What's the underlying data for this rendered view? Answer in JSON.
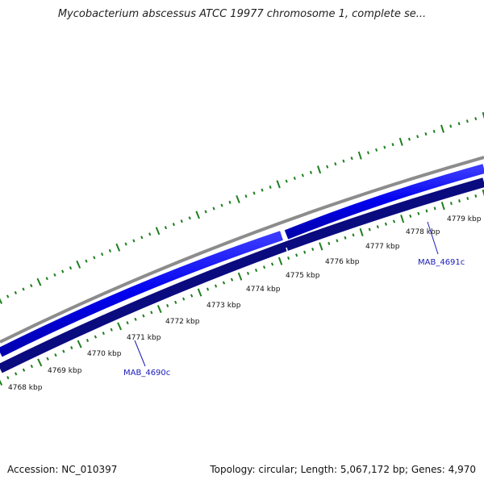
{
  "title": "Mycobacterium abscessus ATCC 19977 chromosome 1, complete se...",
  "footer": {
    "accession": "Accession: NC_010397",
    "summary": "Topology: circular; Length: 5,067,172 bp; Genes: 4,970"
  },
  "colors": {
    "backbone": "#8c8c8c",
    "forward_strand": "#0000ee",
    "reverse_strand": "#0b0b80",
    "ticks": "#1e7f1e",
    "gene_label": "#1a1ab8"
  },
  "ticks": {
    "labels": [
      "4768 kbp",
      "4769 kbp",
      "4770 kbp",
      "4771 kbp",
      "4772 kbp",
      "4773 kbp",
      "4774 kbp",
      "4775 kbp",
      "4776 kbp",
      "4777 kbp",
      "4778 kbp",
      "4779 kbp"
    ]
  },
  "genes": [
    {
      "name": "MAB_4690c"
    },
    {
      "name": "MAB_4691c"
    }
  ]
}
